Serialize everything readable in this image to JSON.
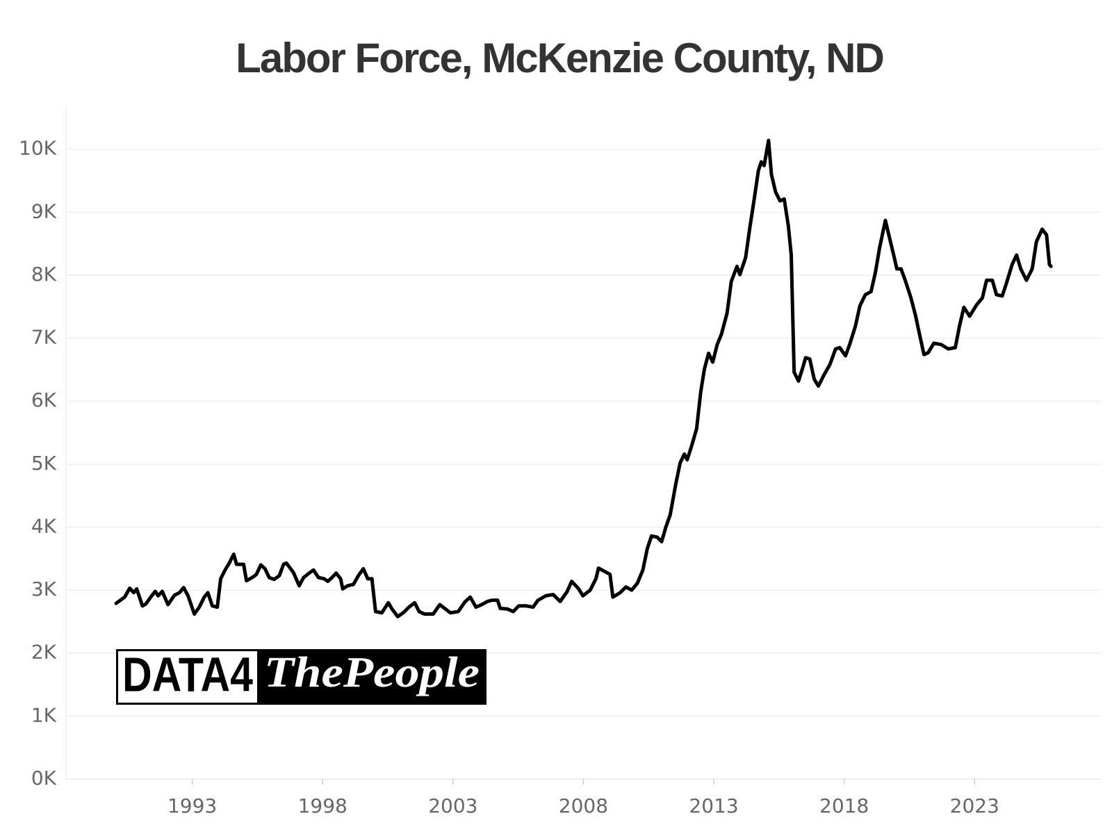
{
  "chart_data": {
    "type": "line",
    "title": "Labor Force, McKenzie County, ND",
    "logo": {
      "left": "DATA4",
      "right": "ThePeople"
    },
    "xlim": [
      1988.16,
      2027.87
    ],
    "xticks": [
      1993,
      1998,
      2003,
      2008,
      2013,
      2018,
      2023
    ],
    "ylim": [
      0,
      10670
    ],
    "yticks": [
      {
        "value": 0,
        "label": "0K"
      },
      {
        "value": 1000,
        "label": "1K"
      },
      {
        "value": 2000,
        "label": "2K"
      },
      {
        "value": 3000,
        "label": "3K"
      },
      {
        "value": 4000,
        "label": "4K"
      },
      {
        "value": 5000,
        "label": "5K"
      },
      {
        "value": 6000,
        "label": "6K"
      },
      {
        "value": 7000,
        "label": "7K"
      },
      {
        "value": 8000,
        "label": "8K"
      },
      {
        "value": 9000,
        "label": "9K"
      },
      {
        "value": 10000,
        "label": "10K"
      }
    ],
    "grid": true,
    "series": [
      {
        "color": "#000000",
        "x": [
          1990.08,
          1990.41,
          1990.6,
          1990.76,
          1990.87,
          1991.09,
          1991.22,
          1991.41,
          1991.58,
          1991.69,
          1991.85,
          1992.07,
          1992.32,
          1992.51,
          1992.67,
          1992.84,
          1993.08,
          1993.27,
          1993.46,
          1993.6,
          1993.77,
          1993.96,
          1994.09,
          1994.26,
          1994.42,
          1994.59,
          1994.7,
          1994.97,
          1995.08,
          1995.3,
          1995.46,
          1995.63,
          1995.79,
          1995.95,
          1996.14,
          1996.34,
          1996.5,
          1996.61,
          1996.88,
          1997.1,
          1997.27,
          1997.48,
          1997.65,
          1997.84,
          1998.06,
          1998.2,
          1998.36,
          1998.52,
          1998.69,
          1998.77,
          1998.96,
          1999.18,
          1999.37,
          1999.56,
          1999.73,
          1999.89,
          2000.03,
          2000.27,
          2000.52,
          2000.66,
          2000.88,
          2001.09,
          2001.31,
          2001.53,
          2001.7,
          2001.91,
          2002.24,
          2002.49,
          2002.68,
          2002.9,
          2003.2,
          2003.45,
          2003.66,
          2003.88,
          2004.1,
          2004.32,
          2004.49,
          2004.71,
          2004.81,
          2005.09,
          2005.31,
          2005.52,
          2005.8,
          2006.07,
          2006.26,
          2006.56,
          2006.84,
          2007.11,
          2007.38,
          2007.55,
          2007.82,
          2007.98,
          2008.26,
          2008.48,
          2008.58,
          2008.8,
          2009.02,
          2009.13,
          2009.41,
          2009.63,
          2009.85,
          2010.07,
          2010.28,
          2010.45,
          2010.61,
          2010.83,
          2011.0,
          2011.16,
          2011.33,
          2011.54,
          2011.71,
          2011.87,
          2011.98,
          2012.15,
          2012.34,
          2012.5,
          2012.64,
          2012.8,
          2012.96,
          2013.13,
          2013.29,
          2013.51,
          2013.67,
          2013.89,
          2014.0,
          2014.22,
          2014.38,
          2014.55,
          2014.71,
          2014.82,
          2014.93,
          2015.1,
          2015.21,
          2015.37,
          2015.54,
          2015.7,
          2015.86,
          2015.97,
          2016.08,
          2016.25,
          2016.41,
          2016.52,
          2016.68,
          2016.85,
          2017.01,
          2017.23,
          2017.45,
          2017.67,
          2017.83,
          2018.05,
          2018.21,
          2018.43,
          2018.6,
          2018.81,
          2019.03,
          2019.2,
          2019.36,
          2019.58,
          2019.74,
          2019.91,
          2020.02,
          2020.18,
          2020.34,
          2020.56,
          2020.73,
          2020.89,
          2021.06,
          2021.22,
          2021.44,
          2021.71,
          2021.99,
          2022.26,
          2022.42,
          2022.59,
          2022.81,
          2023.08,
          2023.3,
          2023.46,
          2023.68,
          2023.84,
          2024.06,
          2024.22,
          2024.44,
          2024.61,
          2024.77,
          2024.99,
          2025.21,
          2025.37,
          2025.59,
          2025.76,
          2025.87,
          2025.93
        ],
        "values": [
          2790,
          2890,
          3030,
          2960,
          3020,
          2750,
          2780,
          2890,
          2980,
          2910,
          2980,
          2770,
          2920,
          2960,
          3040,
          2910,
          2620,
          2730,
          2890,
          2960,
          2750,
          2730,
          3180,
          3320,
          3430,
          3570,
          3410,
          3410,
          3150,
          3200,
          3250,
          3400,
          3340,
          3200,
          3170,
          3230,
          3410,
          3430,
          3280,
          3070,
          3200,
          3270,
          3320,
          3200,
          3180,
          3140,
          3200,
          3270,
          3180,
          3020,
          3070,
          3090,
          3230,
          3340,
          3180,
          3180,
          2660,
          2640,
          2800,
          2700,
          2580,
          2640,
          2730,
          2800,
          2660,
          2620,
          2620,
          2770,
          2710,
          2640,
          2660,
          2810,
          2890,
          2730,
          2770,
          2820,
          2840,
          2840,
          2710,
          2700,
          2660,
          2750,
          2750,
          2730,
          2840,
          2910,
          2930,
          2820,
          2980,
          3140,
          3020,
          2910,
          3000,
          3180,
          3350,
          3300,
          3250,
          2890,
          2960,
          3050,
          3000,
          3110,
          3320,
          3660,
          3860,
          3840,
          3770,
          4000,
          4200,
          4680,
          5020,
          5160,
          5070,
          5290,
          5560,
          6150,
          6510,
          6760,
          6620,
          6900,
          7060,
          7400,
          7900,
          8140,
          8010,
          8280,
          8750,
          9210,
          9660,
          9800,
          9740,
          10140,
          9600,
          9320,
          9180,
          9210,
          8780,
          8320,
          6460,
          6320,
          6530,
          6690,
          6670,
          6350,
          6240,
          6420,
          6580,
          6830,
          6850,
          6720,
          6900,
          7190,
          7510,
          7690,
          7740,
          8050,
          8440,
          8870,
          8590,
          8300,
          8100,
          8100,
          7920,
          7640,
          7370,
          7060,
          6740,
          6770,
          6920,
          6900,
          6830,
          6850,
          7190,
          7490,
          7350,
          7530,
          7640,
          7920,
          7920,
          7690,
          7670,
          7870,
          8170,
          8320,
          8100,
          7920,
          8100,
          8530,
          8730,
          8640,
          8170,
          8140
        ]
      }
    ]
  }
}
